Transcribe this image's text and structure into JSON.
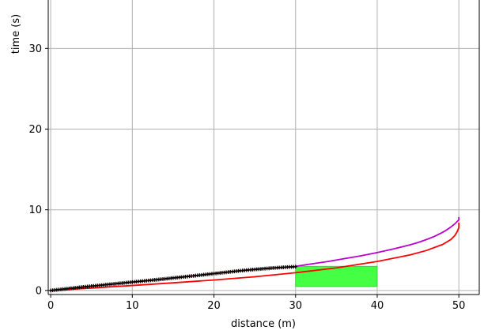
{
  "chart_data": {
    "type": "line",
    "title": "",
    "xlabel": "distance (m)",
    "ylabel": "time (s)",
    "xlim": [
      -0.3,
      52.5
    ],
    "ylim": [
      -0.5,
      36
    ],
    "xticks": [
      0,
      10,
      20,
      30,
      40,
      50
    ],
    "yticks": [
      0,
      10,
      20,
      30
    ],
    "grid": true,
    "legend": "none",
    "colors": {
      "marker_series": "#000000",
      "marker_line": "#8b0000",
      "purple_series": "#bb00cc",
      "red_series": "#ff0000",
      "region_fill": "#44ff44",
      "grid": "#b0b0b0"
    },
    "region": {
      "x": [
        30,
        40
      ],
      "y": [
        0.5,
        3.0
      ]
    },
    "series": [
      {
        "style": "markers",
        "x": [
          0,
          1,
          2,
          3,
          4,
          5,
          6,
          7,
          8,
          9,
          10,
          11,
          12,
          13,
          14,
          15,
          16,
          17,
          18,
          19,
          20,
          21,
          22,
          23,
          24,
          25,
          26,
          27,
          28,
          29,
          30
        ],
        "y": [
          0.0,
          0.11,
          0.22,
          0.33,
          0.44,
          0.54,
          0.64,
          0.74,
          0.84,
          0.94,
          1.04,
          1.14,
          1.24,
          1.34,
          1.44,
          1.55,
          1.65,
          1.76,
          1.87,
          1.98,
          2.09,
          2.2,
          2.31,
          2.42,
          2.52,
          2.61,
          2.69,
          2.77,
          2.84,
          2.9,
          2.95
        ]
      },
      {
        "style": "line",
        "x": [
          30,
          32,
          34,
          36,
          38,
          40,
          42,
          44,
          45,
          46,
          47,
          48,
          48.5,
          49,
          49.5,
          49.8,
          50,
          50
        ],
        "y": [
          3.0,
          3.3,
          3.6,
          3.95,
          4.3,
          4.7,
          5.15,
          5.65,
          5.95,
          6.3,
          6.7,
          7.2,
          7.5,
          7.85,
          8.25,
          8.55,
          8.75,
          9.1
        ]
      },
      {
        "style": "line",
        "x": [
          0,
          2,
          5,
          10,
          15,
          20,
          25,
          30,
          35,
          40,
          44,
          46,
          48,
          49,
          49.5,
          49.8,
          50,
          50
        ],
        "y": [
          0.0,
          0.12,
          0.3,
          0.62,
          0.95,
          1.3,
          1.7,
          2.2,
          2.8,
          3.6,
          4.4,
          4.95,
          5.7,
          6.3,
          6.8,
          7.3,
          7.8,
          8.4
        ]
      }
    ]
  }
}
